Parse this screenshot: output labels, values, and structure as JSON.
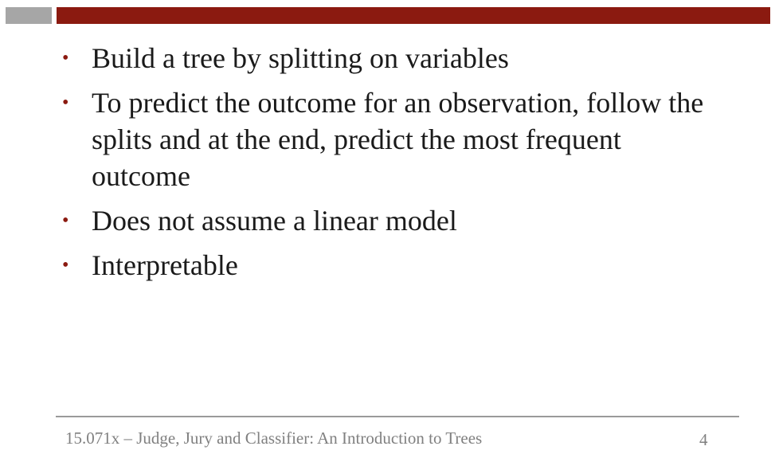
{
  "colors": {
    "accent_bar": "#8b1a10",
    "gray_block": "#a6a6a6",
    "bullet_dot": "#8b1a10"
  },
  "slide": {
    "bullets": [
      {
        "text": "Build a tree by splitting on variables"
      },
      {
        "text": "To predict the outcome for an observation, follow the splits and at the end, predict the most frequent outcome"
      },
      {
        "text": "Does not assume a linear model"
      },
      {
        "text": "Interpretable"
      }
    ],
    "bullet_symbol": "•"
  },
  "footer": {
    "text": "15.071x – Judge, Jury and Classifier: An Introduction to Trees",
    "page_number": "4"
  }
}
